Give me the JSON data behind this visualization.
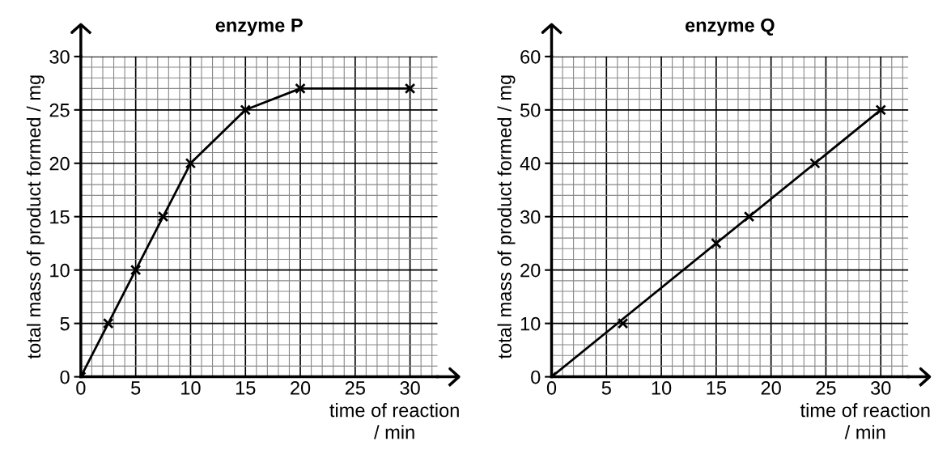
{
  "chart_data": [
    {
      "type": "line",
      "title": "enzyme P",
      "xlabel": "time of reaction\n/ min",
      "ylabel": "total mass of product formed / mg",
      "xlim": [
        0,
        32.5
      ],
      "ylim": [
        0,
        30
      ],
      "xticks": [
        0,
        5,
        10,
        15,
        20,
        25,
        30
      ],
      "yticks": [
        0,
        5,
        10,
        15,
        20,
        25,
        30
      ],
      "grid": true,
      "marker": "cross",
      "line_style": "solid",
      "series": [
        {
          "color": "#000000",
          "x": [
            0,
            2.5,
            5,
            7.5,
            10,
            15,
            20,
            30
          ],
          "values": [
            0,
            5,
            10,
            15,
            20,
            25,
            27,
            27
          ]
        }
      ]
    },
    {
      "type": "scatter",
      "title": "enzyme Q",
      "xlabel": "time of reaction\n/ min",
      "ylabel": "total mass of product formed / mg",
      "xlim": [
        0,
        32.5
      ],
      "ylim": [
        0,
        60
      ],
      "xticks": [
        0,
        5,
        10,
        15,
        20,
        25,
        30
      ],
      "yticks": [
        0,
        10,
        20,
        30,
        40,
        50,
        60
      ],
      "grid": true,
      "marker": "cross",
      "series": [
        {
          "color": "#000000",
          "x": [
            0,
            6.5,
            15,
            18,
            24,
            30
          ],
          "values": [
            0,
            10,
            25,
            30,
            40,
            50
          ]
        },
        {
          "type": "line",
          "color": "#000000",
          "marker": "none",
          "line_style": "solid",
          "x": [
            0,
            30
          ],
          "values": [
            0,
            50
          ]
        }
      ]
    }
  ]
}
